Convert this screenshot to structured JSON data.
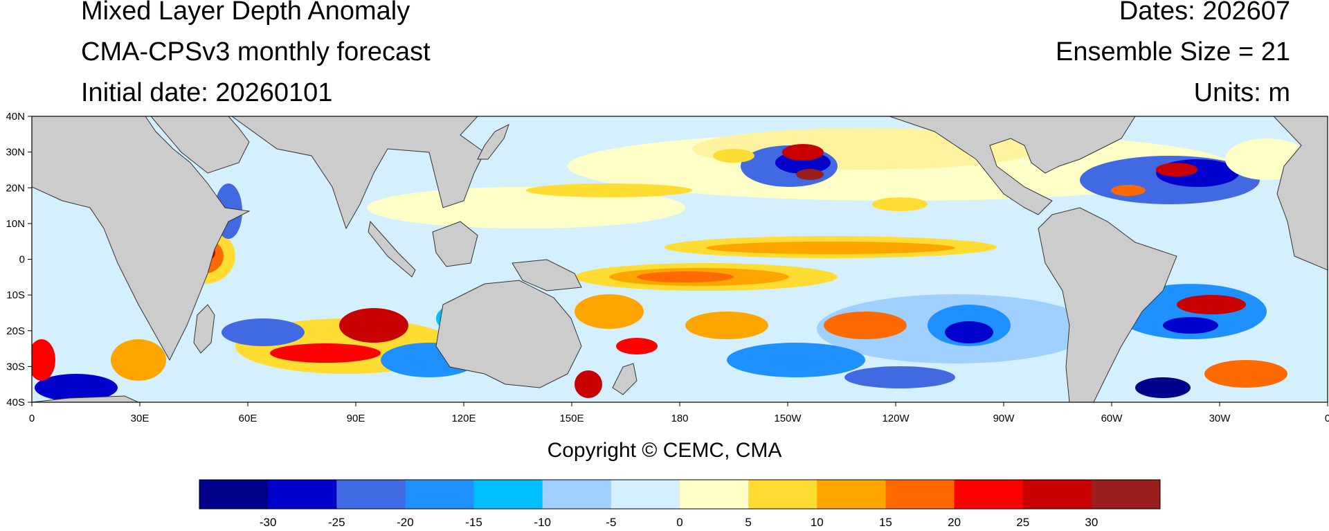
{
  "header": {
    "title": "Mixed Layer Depth Anomaly",
    "subtitle": "CMA-CPSv3 monthly forecast",
    "initial_date": "Initial date: 20260101",
    "dates": "Dates: 202607",
    "ensemble": "Ensemble Size = 21",
    "units": "Units: m"
  },
  "map": {
    "lon_labels": [
      "0",
      "30E",
      "60E",
      "90E",
      "120E",
      "150E",
      "180",
      "150W",
      "120W",
      "90W",
      "60W",
      "30W",
      "0"
    ],
    "lat_labels": [
      "40N",
      "30N",
      "20N",
      "10N",
      "0",
      "10S",
      "20S",
      "30S",
      "40S"
    ],
    "lon_range": [
      0,
      360
    ],
    "lat_range": [
      -40,
      40
    ],
    "land_color": "#cccccc",
    "coast_color": "#333333"
  },
  "copyright": "Copyright © CEMC, CMA",
  "colorbar": {
    "labels": [
      "-30",
      "-25",
      "-20",
      "-15",
      "-10",
      "-5",
      "0",
      "5",
      "10",
      "15",
      "20",
      "25",
      "30"
    ],
    "colors": [
      "#00008b",
      "#0000cd",
      "#4169e1",
      "#1e90ff",
      "#00bfff",
      "#a0d0ff",
      "#d4f0ff",
      "#ffffc8",
      "#ffdc32",
      "#ffa500",
      "#ff6a00",
      "#ff0000",
      "#c80000",
      "#9b1e1e"
    ]
  }
}
